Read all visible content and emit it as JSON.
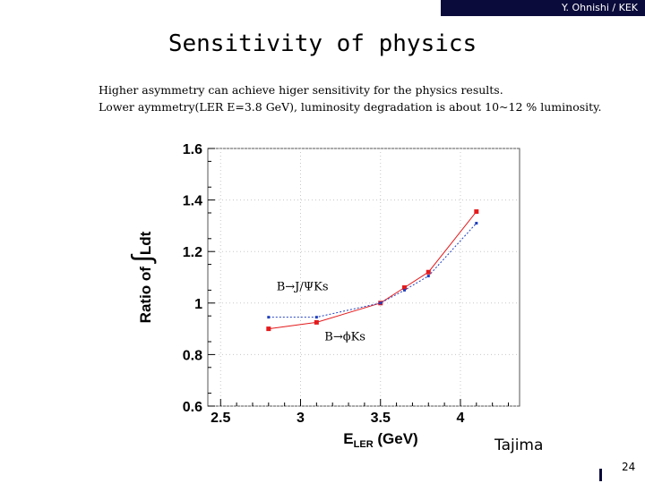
{
  "header": {
    "author": "Y. Ohnishi / KEK"
  },
  "title": "Sensitivity of physics",
  "body": {
    "line1": "Higher asymmetry can achieve higer sensitivity for the physics results.",
    "line2": "Lower aymmetry(LER E=3.8 GeV), luminosity degradation is about 10~12 % luminosity."
  },
  "chart_data": {
    "type": "line",
    "xlabel_main": "E",
    "xlabel_sub": "LER",
    "xlabel_rest": " (GeV)",
    "ylabel_pre": "Ratio of ",
    "ylabel_integral": "∫",
    "ylabel_post": "Ldt",
    "xlim": [
      2.42,
      4.37
    ],
    "ylim": [
      0.6,
      1.6
    ],
    "xticks": [
      2.5,
      3,
      3.5,
      4
    ],
    "xticklabels": [
      "2.5",
      "3",
      "3.5",
      "4"
    ],
    "yticks": [
      0.6,
      0.8,
      1.0,
      1.2,
      1.4,
      1.6
    ],
    "yticklabels": [
      "0.6",
      "0.8",
      "1",
      "1.2",
      "1.4",
      "1.6"
    ],
    "series": [
      {
        "name": "B→ϕKs",
        "color": "#e41a1c",
        "style": "solid",
        "marker": "square",
        "x": [
          2.8,
          3.1,
          3.5,
          3.65,
          3.8,
          4.1
        ],
        "y": [
          0.9,
          0.925,
          1.0,
          1.06,
          1.12,
          1.355
        ]
      },
      {
        "name": "B→J/ΨKs",
        "color": "#1f3fbf",
        "style": "dotted",
        "marker": "square-small",
        "x": [
          2.8,
          3.1,
          3.5,
          3.65,
          3.8,
          4.1
        ],
        "y": [
          0.945,
          0.945,
          1.0,
          1.05,
          1.105,
          1.31
        ]
      }
    ],
    "annotations": [
      {
        "text": "B→J/ΨKs",
        "x": 2.85,
        "y": 1.05
      },
      {
        "text": "B→ϕKs",
        "x": 3.15,
        "y": 0.855
      }
    ]
  },
  "footer": {
    "credit": "Tajima",
    "page_number": "24"
  }
}
